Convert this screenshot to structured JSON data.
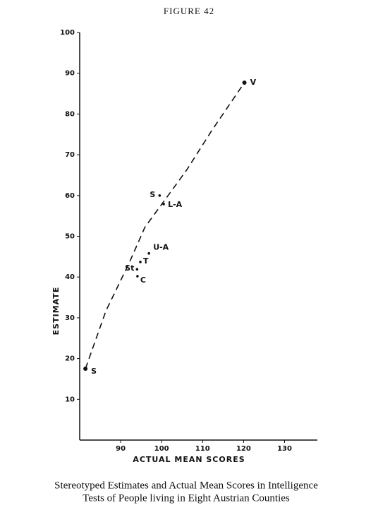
{
  "chart_data": {
    "type": "scatter",
    "title": "FIGURE 42",
    "x_label": "ACTUAL MEAN SCORES",
    "y_label": "ESTIMATE",
    "caption": [
      "Stereotyped Estimates and Actual Mean Scores in Intelligence",
      "Tests of People living in Eight Austrian Counties"
    ],
    "xlim": [
      80,
      138
    ],
    "ylim": [
      0,
      100
    ],
    "xticks": [
      90,
      100,
      110,
      120,
      130
    ],
    "yticks": [
      10,
      20,
      30,
      40,
      50,
      60,
      70,
      80,
      90,
      100
    ],
    "series": [
      {
        "color": "#111111",
        "labels": [
          "S",
          "V",
          "S",
          "L-A",
          "U-A",
          "T",
          "St",
          "C"
        ],
        "x": [
          81.4,
          120.2,
          99.5,
          100.5,
          96.9,
          94.8,
          94.0,
          94.1
        ],
        "values": [
          17.5,
          87.7,
          60.0,
          57.9,
          45.8,
          43.7,
          41.9,
          40.2
        ]
      }
    ],
    "curve": {
      "style": "dashed",
      "color": "#111111",
      "x": [
        81.4,
        86.4,
        92.1,
        95.9,
        100.2,
        106.2,
        112.2,
        120.2
      ],
      "values": [
        17.5,
        31.7,
        43.5,
        52.2,
        58.1,
        66.4,
        75.9,
        87.7
      ]
    }
  }
}
